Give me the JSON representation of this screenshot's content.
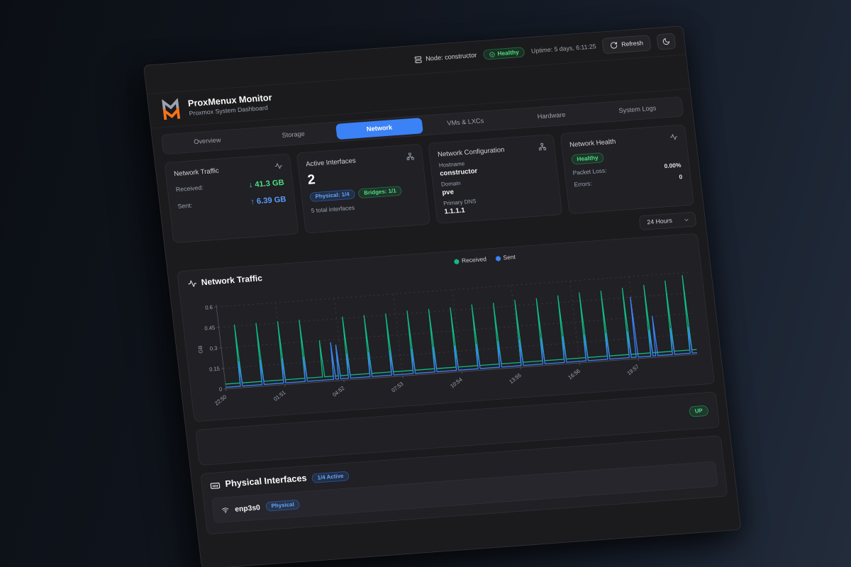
{
  "topbar": {
    "node": "Node: constructor",
    "health_badge": "Healthy",
    "uptime": "Uptime: 5 days, 6:11:25",
    "refresh_label": "Refresh"
  },
  "header": {
    "title": "ProxMenux Monitor",
    "subtitle": "Proxmox System Dashboard"
  },
  "tabs": {
    "items": [
      "Overview",
      "Storage",
      "Network",
      "VMs & LXCs",
      "Hardware",
      "System Logs"
    ],
    "active": "Network"
  },
  "stats": {
    "traffic": {
      "title": "Network Traffic",
      "received_label": "Received:",
      "received_value": "↓ 41.3 GB",
      "sent_label": "Sent:",
      "sent_value": "↑ 6.39 GB"
    },
    "interfaces": {
      "title": "Active Interfaces",
      "count": "2",
      "badge_physical": "Physical: 1/4",
      "badge_bridges": "Bridges: 1/1",
      "note": "5 total interfaces"
    },
    "config": {
      "title": "Network Configuration",
      "hostname_label": "Hostname",
      "hostname": "constructor",
      "domain_label": "Domain",
      "domain": "pve",
      "dns_label": "Primary DNS",
      "dns": "1.1.1.1"
    },
    "health": {
      "title": "Network Health",
      "status": "Healthy",
      "packet_loss_label": "Packet Loss:",
      "packet_loss": "0.00%",
      "errors_label": "Errors:",
      "errors": "0"
    }
  },
  "time_range": {
    "selected": "24 Hours"
  },
  "chart_section": {
    "title": "Network Traffic"
  },
  "status_row": {
    "badge": "UP"
  },
  "physical_section": {
    "title": "Physical Interfaces",
    "badge": "1/4 Active",
    "interfaces": [
      {
        "name": "enp3s0",
        "type_badge": "Physical"
      }
    ]
  },
  "colors": {
    "accent_blue": "#3b82f6",
    "success_green": "#4ade80",
    "logo_orange": "#f97316"
  },
  "chart_data": {
    "type": "line",
    "title": "Network Traffic",
    "ylabel": "GB",
    "ylim": [
      0,
      0.6
    ],
    "yticks": [
      0,
      0.15,
      0.3,
      0.45,
      0.6
    ],
    "xticks": [
      "22:50",
      "01:51",
      "04:52",
      "07:53",
      "10:54",
      "13:55",
      "16:56",
      "19:57"
    ],
    "x_range_hours": 24,
    "grid": true,
    "legend_position": "top-center",
    "series": [
      {
        "name": "Received",
        "color": "#10b981",
        "baseline_gb": 0.035,
        "spikes_t_hours_gb": [
          [
            0.8,
            0.46
          ],
          [
            1.9,
            0.46
          ],
          [
            3.0,
            0.46
          ],
          [
            4.1,
            0.46
          ],
          [
            5.0,
            0.3
          ],
          [
            5.55,
            0.22
          ],
          [
            5.8,
            0.26
          ],
          [
            6.3,
            0.46
          ],
          [
            7.4,
            0.46
          ],
          [
            8.5,
            0.46
          ],
          [
            9.6,
            0.47
          ],
          [
            10.7,
            0.47
          ],
          [
            11.8,
            0.47
          ],
          [
            12.9,
            0.48
          ],
          [
            14.0,
            0.48
          ],
          [
            15.1,
            0.49
          ],
          [
            16.2,
            0.49
          ],
          [
            17.3,
            0.5
          ],
          [
            18.4,
            0.51
          ],
          [
            19.5,
            0.51
          ],
          [
            20.6,
            0.52
          ],
          [
            21.7,
            0.53
          ],
          [
            22.8,
            0.55
          ],
          [
            23.7,
            0.58
          ]
        ]
      },
      {
        "name": "Sent",
        "color": "#3b82f6",
        "baseline_gb": 0.012,
        "spikes_t_hours_gb": [
          [
            0.8,
            0.19
          ],
          [
            1.9,
            0.19
          ],
          [
            3.0,
            0.19
          ],
          [
            4.1,
            0.19
          ],
          [
            5.55,
            0.28
          ],
          [
            5.8,
            0.26
          ],
          [
            6.3,
            0.19
          ],
          [
            7.4,
            0.19
          ],
          [
            8.5,
            0.19
          ],
          [
            9.6,
            0.19
          ],
          [
            10.7,
            0.19
          ],
          [
            11.8,
            0.19
          ],
          [
            12.9,
            0.19
          ],
          [
            14.0,
            0.2
          ],
          [
            15.1,
            0.2
          ],
          [
            16.2,
            0.2
          ],
          [
            17.3,
            0.2
          ],
          [
            18.4,
            0.2
          ],
          [
            19.5,
            0.2
          ],
          [
            20.6,
            0.2
          ],
          [
            20.95,
            0.45
          ],
          [
            21.7,
            0.2
          ],
          [
            21.95,
            0.3
          ],
          [
            22.8,
            0.2
          ],
          [
            23.7,
            0.2
          ]
        ]
      }
    ]
  }
}
